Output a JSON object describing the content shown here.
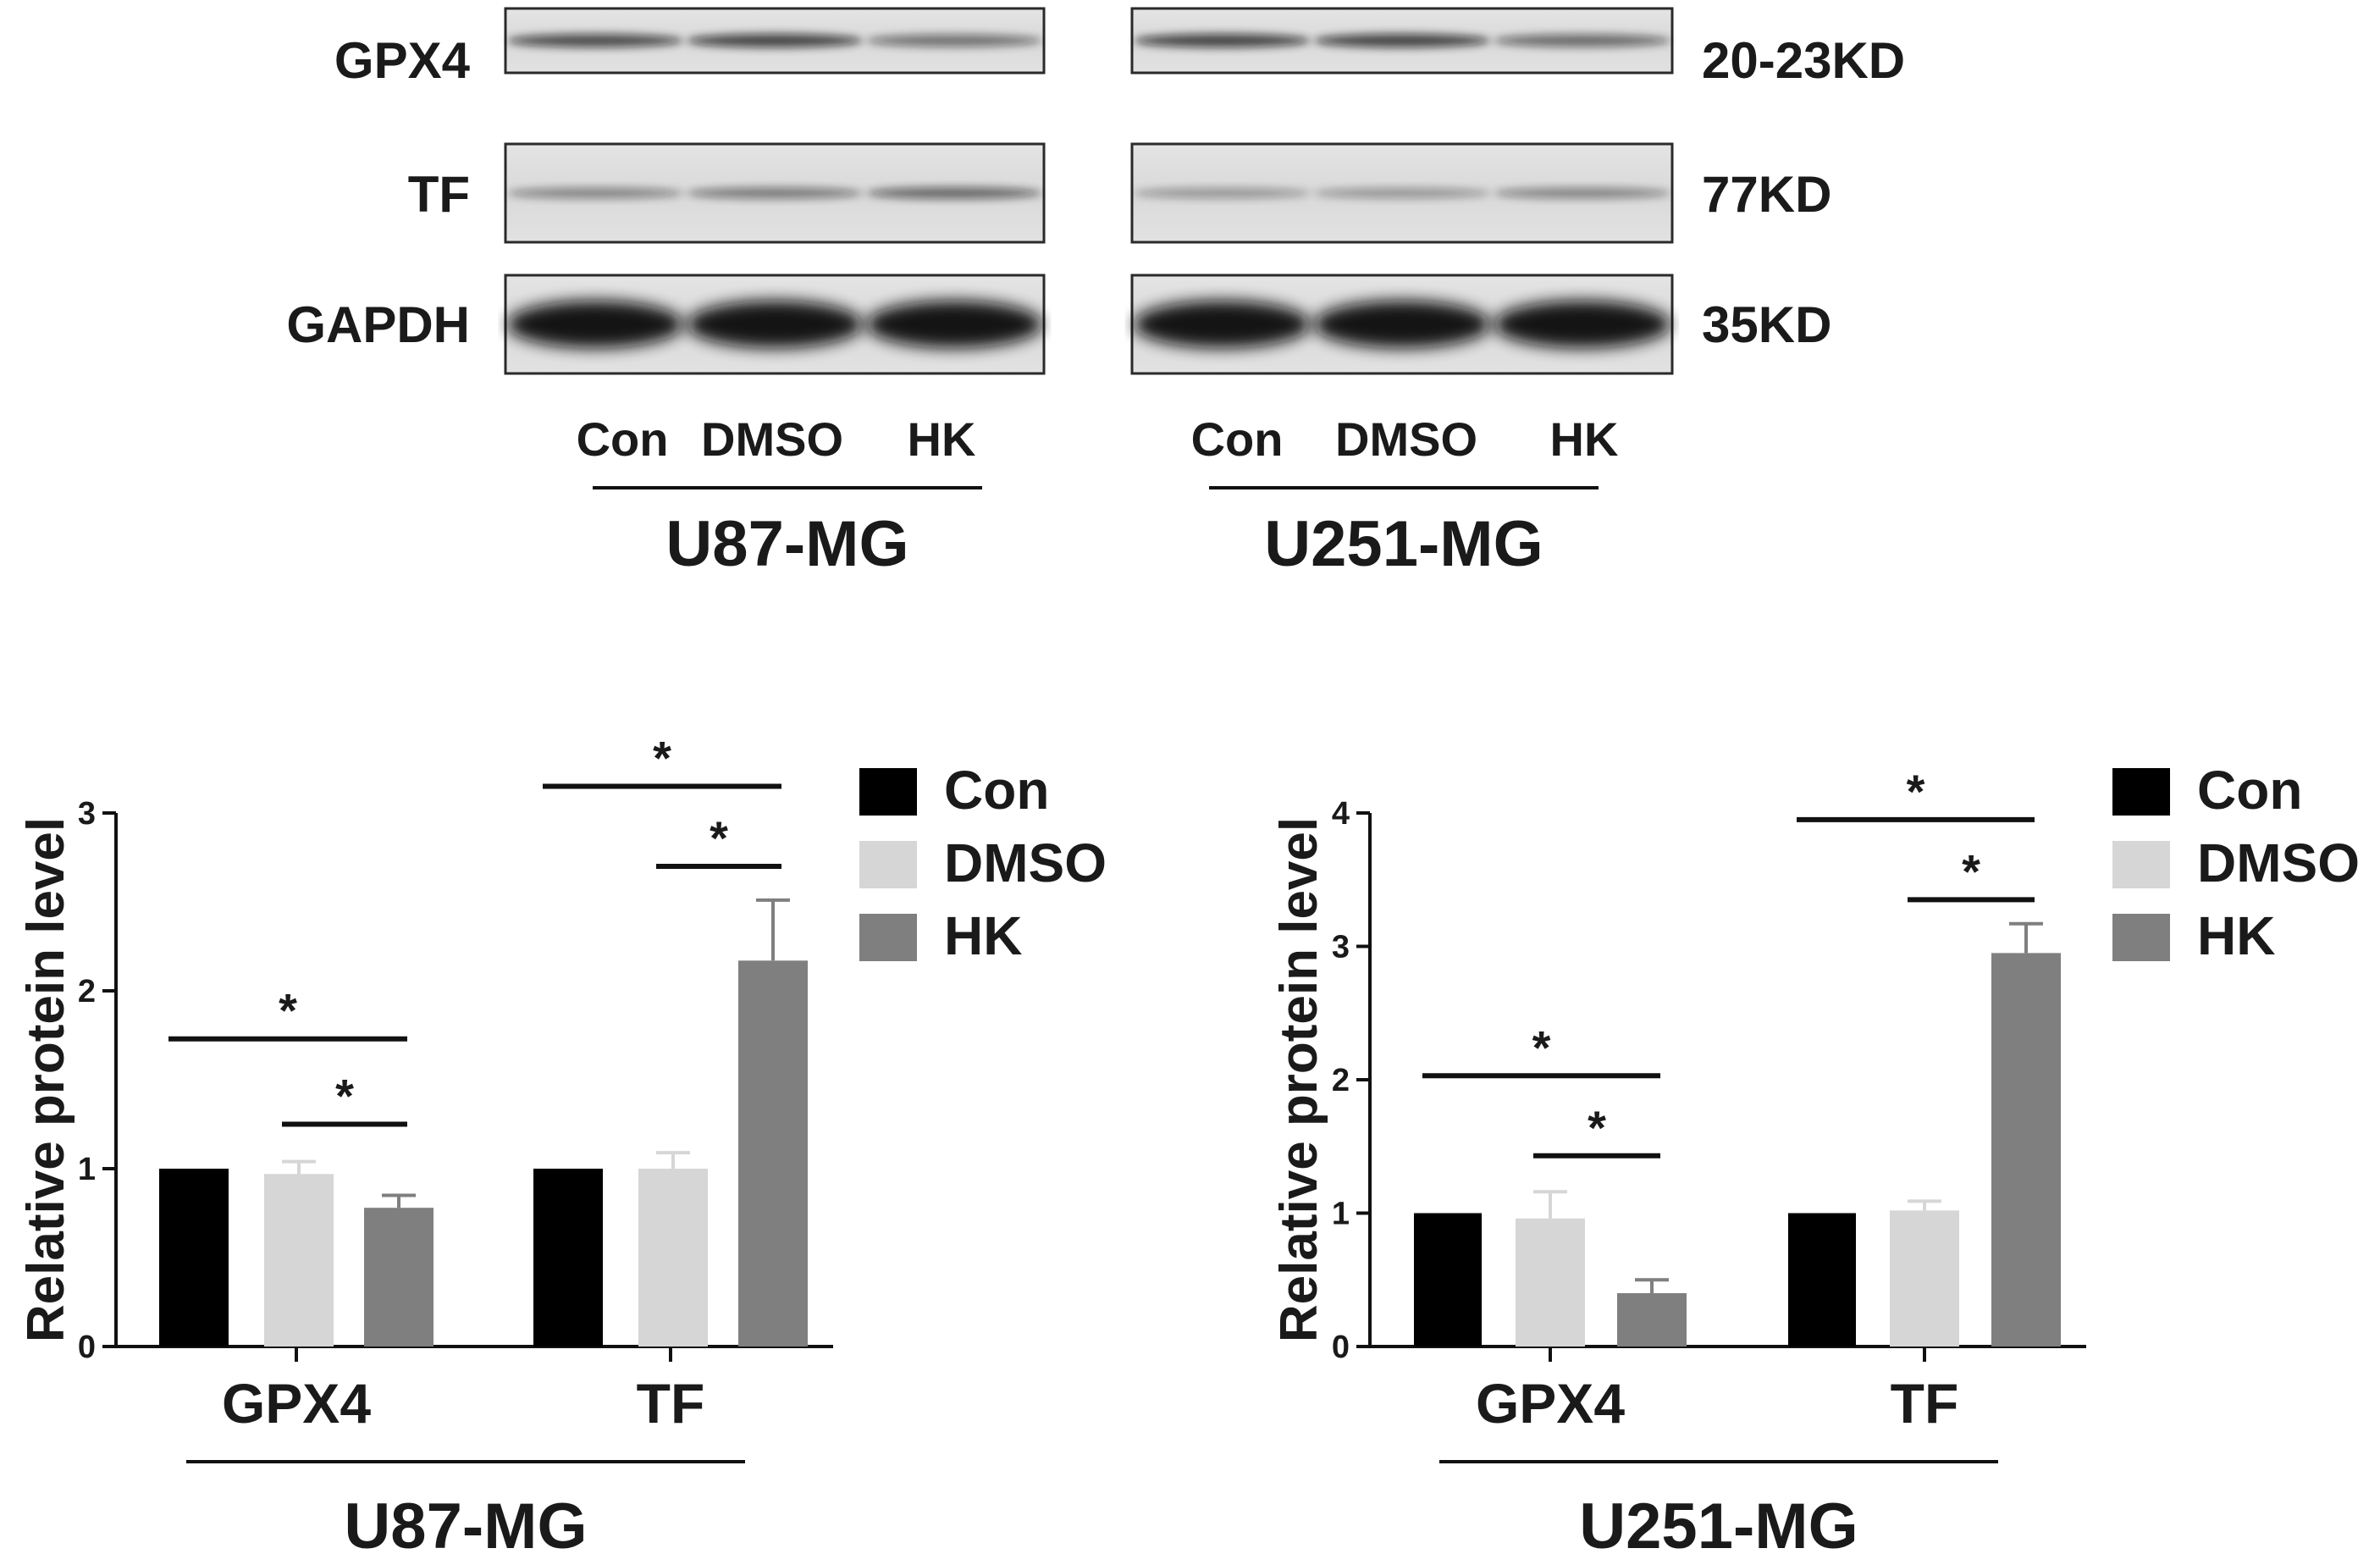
{
  "western_blot": {
    "proteins": [
      {
        "name": "GPX4",
        "size": "20-23KD"
      },
      {
        "name": "TF",
        "size": "77KD"
      },
      {
        "name": "GAPDH",
        "size": "35KD"
      }
    ],
    "lane_labels": [
      "Con",
      "DMSO",
      "HK"
    ],
    "cell_lines": [
      "U87-MG",
      "U251-MG"
    ]
  },
  "colors": {
    "Con": "#000000",
    "DMSO": "#d6d6d6",
    "HK": "#7f7f7f"
  },
  "chart_data": [
    {
      "type": "bar",
      "group_label": "U87-MG",
      "ylabel": "Relative protein level",
      "ylim": [
        0,
        3
      ],
      "yticks": [
        "0",
        "1",
        "2",
        "3"
      ],
      "categories": [
        "GPX4",
        "TF"
      ],
      "series": [
        {
          "name": "Con",
          "values": [
            1.0,
            1.0
          ],
          "errors": [
            0,
            0
          ]
        },
        {
          "name": "DMSO",
          "values": [
            0.97,
            1.0
          ],
          "errors": [
            0.07,
            0.09
          ]
        },
        {
          "name": "HK",
          "values": [
            0.78,
            2.17
          ],
          "errors": [
            0.07,
            0.34
          ]
        }
      ],
      "significance": [
        {
          "category": "GPX4",
          "from": "Con",
          "to": "HK",
          "y": 1.73,
          "label": "*"
        },
        {
          "category": "GPX4",
          "from": "DMSO",
          "to": "HK",
          "y": 1.25,
          "label": "*"
        },
        {
          "category": "TF",
          "from": "Con",
          "to": "HK",
          "y": 3.15,
          "label": "*"
        },
        {
          "category": "TF",
          "from": "DMSO",
          "to": "HK",
          "y": 2.7,
          "label": "*"
        }
      ],
      "legend": "top-right"
    },
    {
      "type": "bar",
      "group_label": "U251-MG",
      "ylabel": "Relative protein level",
      "ylim": [
        0,
        4
      ],
      "yticks": [
        "0",
        "1",
        "2",
        "3",
        "4"
      ],
      "categories": [
        "GPX4",
        "TF"
      ],
      "series": [
        {
          "name": "Con",
          "values": [
            1.0,
            1.0
          ],
          "errors": [
            0,
            0
          ]
        },
        {
          "name": "DMSO",
          "values": [
            0.96,
            1.02
          ],
          "errors": [
            0.2,
            0.07
          ]
        },
        {
          "name": "HK",
          "values": [
            0.4,
            2.95
          ],
          "errors": [
            0.1,
            0.22
          ]
        }
      ],
      "significance": [
        {
          "category": "GPX4",
          "from": "Con",
          "to": "HK",
          "y": 2.03,
          "label": "*"
        },
        {
          "category": "GPX4",
          "from": "DMSO",
          "to": "HK",
          "y": 1.43,
          "label": "*"
        },
        {
          "category": "TF",
          "from": "Con",
          "to": "HK",
          "y": 3.95,
          "label": "*"
        },
        {
          "category": "TF",
          "from": "DMSO",
          "to": "HK",
          "y": 3.35,
          "label": "*"
        }
      ],
      "legend": "top-right"
    }
  ]
}
